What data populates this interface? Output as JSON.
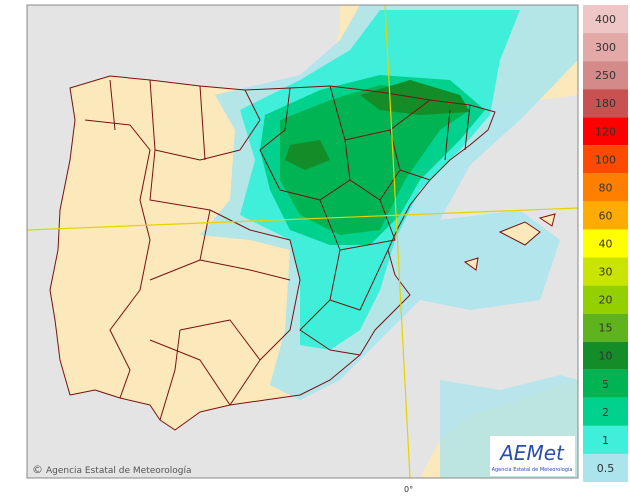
{
  "map": {
    "graticule_label": "0°",
    "copyright_symbol": "©",
    "credit": "Agencia Estatal de Meteorología"
  },
  "logo": {
    "name": "AEMet",
    "subtitle": "Agencia Estatal de Meteorología"
  },
  "legend": [
    {
      "label": "400",
      "color": "#efc6c6"
    },
    {
      "label": "300",
      "color": "#e3a8a8"
    },
    {
      "label": "250",
      "color": "#d58a8a"
    },
    {
      "label": "180",
      "color": "#c85252"
    },
    {
      "label": "120",
      "color": "#ff0000"
    },
    {
      "label": "100",
      "color": "#ff4a00"
    },
    {
      "label": "80",
      "color": "#ff7f00"
    },
    {
      "label": "60",
      "color": "#ffac00"
    },
    {
      "label": "40",
      "color": "#ffff00"
    },
    {
      "label": "30",
      "color": "#c8e400"
    },
    {
      "label": "20",
      "color": "#94d000"
    },
    {
      "label": "15",
      "color": "#5fb41e"
    },
    {
      "label": "10",
      "color": "#148c28"
    },
    {
      "label": "5",
      "color": "#00b454"
    },
    {
      "label": "2",
      "color": "#00d28e"
    },
    {
      "label": "1",
      "color": "#40efd9"
    },
    {
      "label": "0.5",
      "color": "#ace4ec"
    }
  ]
}
